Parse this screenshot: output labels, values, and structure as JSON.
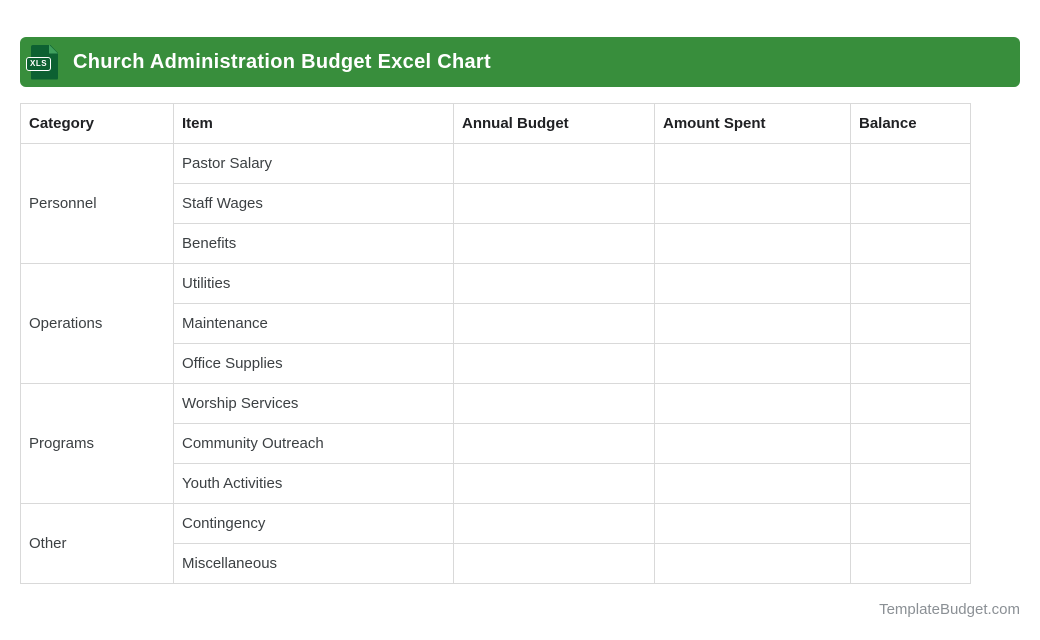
{
  "header": {
    "title": "Church Administration Budget Excel Chart",
    "icon_label": "XLS",
    "bar_color": "#388e3c",
    "icon_color": "#0d6132"
  },
  "table": {
    "columns": [
      "Category",
      "Item",
      "Annual Budget",
      "Amount Spent",
      "Balance"
    ],
    "groups": [
      {
        "category": "Personnel",
        "items": [
          "Pastor Salary",
          "Staff Wages",
          "Benefits"
        ]
      },
      {
        "category": "Operations",
        "items": [
          "Utilities",
          "Maintenance",
          "Office Supplies"
        ]
      },
      {
        "category": "Programs",
        "items": [
          "Worship Services",
          "Community Outreach",
          "Youth Activities"
        ]
      },
      {
        "category": "Other",
        "items": [
          "Contingency",
          "Miscellaneous"
        ]
      }
    ],
    "value_cells_empty": true,
    "border_color": "#d9d9d9"
  },
  "footer": {
    "site": "TemplateBudget.com"
  }
}
